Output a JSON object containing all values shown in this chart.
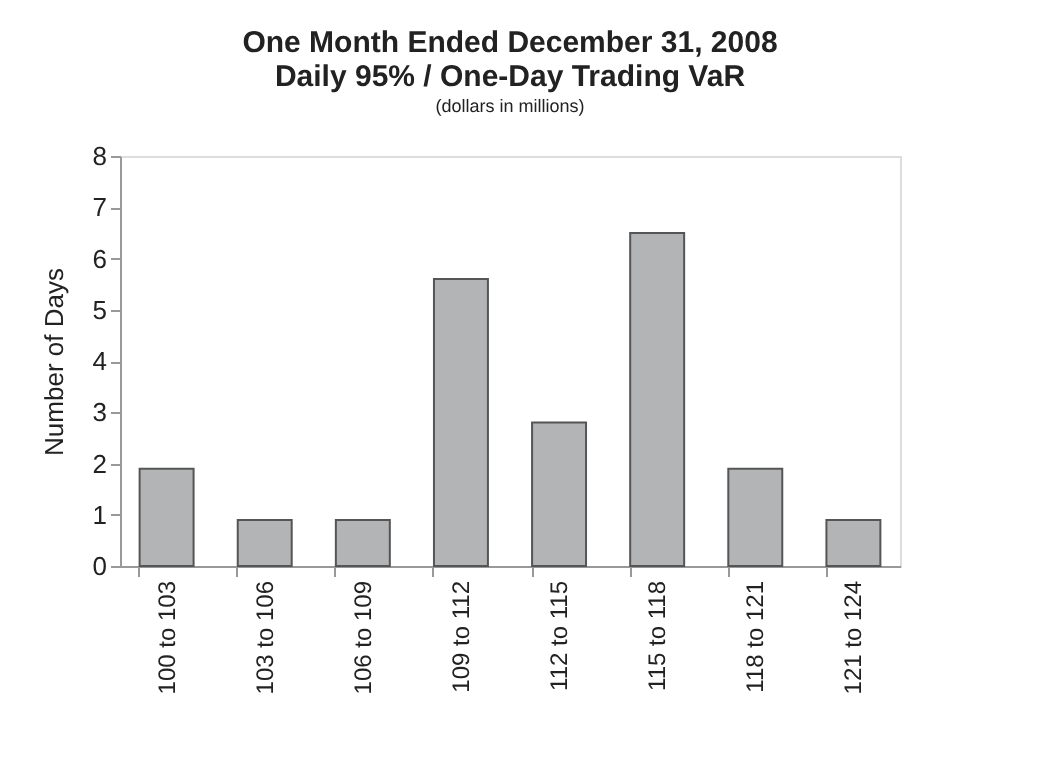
{
  "chart_data": {
    "type": "bar",
    "title": [
      "One Month Ended December 31, 2008",
      "Daily 95% / One-Day Trading VaR"
    ],
    "subtitle": "(dollars in millions)",
    "ylabel": "Number of Days",
    "categories": [
      "100 to 103",
      "103 to 106",
      "106 to 109",
      "109 to 112",
      "112 to 115",
      "115 to 118",
      "118 to 121",
      "121 to 124"
    ],
    "values": [
      1.9,
      0.9,
      0.9,
      5.6,
      2.8,
      6.5,
      1.9,
      0.9
    ],
    "color": "#b3b4b6",
    "ylim": [
      0,
      8
    ],
    "yticks": [
      0,
      1,
      2,
      3,
      4,
      5,
      6,
      7,
      8
    ],
    "grid": false
  }
}
